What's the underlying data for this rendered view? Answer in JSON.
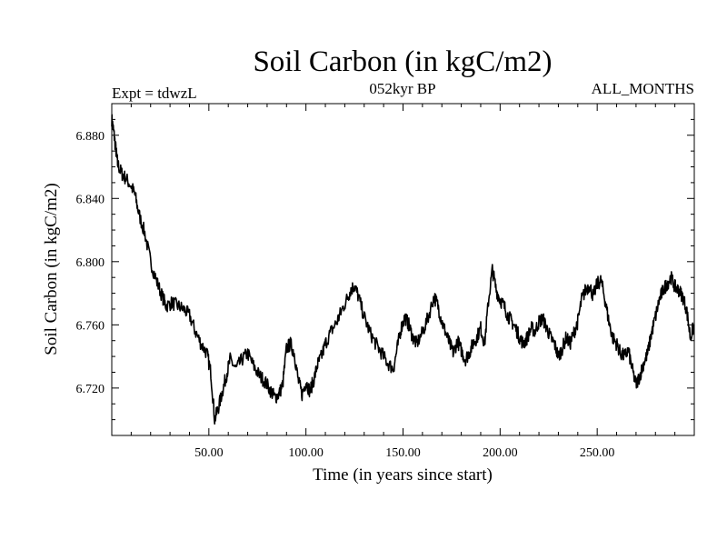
{
  "chart_data": {
    "type": "line",
    "title": "Soil Carbon (in kgC/m2)",
    "subtitle_left": "Expt = tdwzL",
    "subtitle_center": "052kyr BP",
    "subtitle_right": "ALL_MONTHS",
    "xlabel": "Time (in years since start)",
    "ylabel": "Soil Carbon (in kgC/m2)",
    "xlim": [
      0,
      300
    ],
    "ylim": [
      6.69,
      6.9
    ],
    "xticks": [
      50,
      100,
      150,
      200,
      250
    ],
    "xtick_labels": [
      "50.00",
      "100.00",
      "150.00",
      "200.00",
      "250.00"
    ],
    "yticks": [
      6.72,
      6.76,
      6.8,
      6.84,
      6.88
    ],
    "ytick_labels": [
      "6.720",
      "6.760",
      "6.800",
      "6.840",
      "6.880"
    ],
    "grid": false,
    "series": [
      {
        "color": "#000000",
        "x": [
          0,
          1,
          2,
          3,
          5,
          7,
          10,
          12,
          14,
          17,
          20,
          23,
          26,
          28,
          31,
          34,
          37,
          40,
          43,
          46,
          49,
          51,
          53,
          55,
          57,
          59,
          61,
          64,
          67,
          70,
          73,
          76,
          79,
          82,
          84,
          86,
          88,
          90,
          92,
          94,
          96,
          98,
          100,
          102,
          104,
          106,
          108,
          110,
          113,
          116,
          118,
          121,
          123,
          125,
          127,
          130,
          133,
          136,
          139,
          142,
          145,
          147,
          149,
          151,
          153,
          155,
          157,
          160,
          163,
          166,
          168,
          170,
          172,
          174,
          176,
          178,
          180,
          182,
          184,
          186,
          188,
          190,
          192,
          194,
          196,
          198,
          200,
          202,
          204,
          206,
          208,
          210,
          212,
          214,
          216,
          218,
          220,
          222,
          224,
          226,
          228,
          230,
          232,
          234,
          236,
          238,
          240,
          242,
          244,
          246,
          248,
          250,
          252,
          254,
          256,
          258,
          260,
          262,
          264,
          266,
          268,
          270,
          272,
          274,
          276,
          278,
          280,
          282,
          284,
          286,
          288,
          290,
          292,
          294,
          296,
          298,
          300
        ],
        "y": [
          6.89,
          6.882,
          6.872,
          6.862,
          6.856,
          6.853,
          6.848,
          6.842,
          6.83,
          6.818,
          6.8,
          6.788,
          6.778,
          6.772,
          6.774,
          6.772,
          6.77,
          6.766,
          6.756,
          6.748,
          6.742,
          6.73,
          6.7,
          6.708,
          6.718,
          6.728,
          6.738,
          6.732,
          6.738,
          6.742,
          6.734,
          6.728,
          6.724,
          6.718,
          6.714,
          6.716,
          6.722,
          6.745,
          6.748,
          6.742,
          6.725,
          6.716,
          6.724,
          6.718,
          6.725,
          6.735,
          6.74,
          6.748,
          6.756,
          6.762,
          6.768,
          6.776,
          6.782,
          6.785,
          6.778,
          6.765,
          6.755,
          6.748,
          6.742,
          6.736,
          6.732,
          6.745,
          6.758,
          6.765,
          6.76,
          6.752,
          6.748,
          6.755,
          6.765,
          6.778,
          6.772,
          6.762,
          6.755,
          6.748,
          6.742,
          6.75,
          6.744,
          6.738,
          6.742,
          6.748,
          6.752,
          6.758,
          6.748,
          6.775,
          6.795,
          6.782,
          6.776,
          6.772,
          6.766,
          6.762,
          6.758,
          6.752,
          6.748,
          6.752,
          6.758,
          6.756,
          6.762,
          6.764,
          6.758,
          6.752,
          6.748,
          6.74,
          6.745,
          6.752,
          6.748,
          6.755,
          6.762,
          6.776,
          6.782,
          6.785,
          6.778,
          6.786,
          6.788,
          6.776,
          6.762,
          6.752,
          6.748,
          6.742,
          6.74,
          6.744,
          6.732,
          6.722,
          6.728,
          6.736,
          6.742,
          6.755,
          6.765,
          6.776,
          6.782,
          6.786,
          6.79,
          6.784,
          6.782,
          6.778,
          6.77,
          6.752,
          6.76
        ]
      }
    ]
  }
}
